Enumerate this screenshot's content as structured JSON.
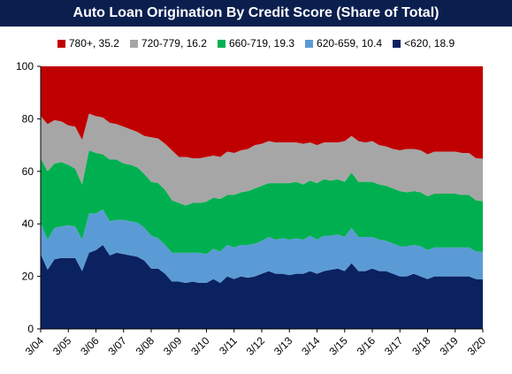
{
  "chart_data": {
    "type": "area",
    "stacked": true,
    "title": "Auto Loan Origination By Credit Score (Share of Total)",
    "ylim": [
      0,
      100
    ],
    "yticks": [
      0,
      20,
      40,
      60,
      80,
      100
    ],
    "xtick_labels": [
      "3/04",
      "3/05",
      "3/06",
      "3/07",
      "3/08",
      "3/09",
      "3/10",
      "3/11",
      "3/12",
      "3/13",
      "3/14",
      "3/15",
      "3/16",
      "3/17",
      "3/18",
      "3/19",
      "3/20"
    ],
    "grid": false,
    "legend_position": "top",
    "x": [
      "1Q04",
      "2Q04",
      "3Q04",
      "4Q04",
      "1Q05",
      "2Q05",
      "3Q05",
      "4Q05",
      "1Q06",
      "2Q06",
      "3Q06",
      "4Q06",
      "1Q07",
      "2Q07",
      "3Q07",
      "4Q07",
      "1Q08",
      "2Q08",
      "3Q08",
      "4Q08",
      "1Q09",
      "2Q09",
      "3Q09",
      "4Q09",
      "1Q10",
      "2Q10",
      "3Q10",
      "4Q10",
      "1Q11",
      "2Q11",
      "3Q11",
      "4Q11",
      "1Q12",
      "2Q12",
      "3Q12",
      "4Q12",
      "1Q13",
      "2Q13",
      "3Q13",
      "4Q13",
      "1Q14",
      "2Q14",
      "3Q14",
      "4Q14",
      "1Q15",
      "2Q15",
      "3Q15",
      "4Q15",
      "1Q16",
      "2Q16",
      "3Q16",
      "4Q16",
      "1Q17",
      "2Q17",
      "3Q17",
      "4Q17",
      "1Q18",
      "2Q18",
      "3Q18",
      "4Q18",
      "1Q19",
      "2Q19",
      "3Q19",
      "4Q19",
      "1Q20"
    ],
    "series": [
      {
        "name": "<620",
        "label": "<620, 18.9",
        "color": "#0b2260",
        "values": [
          28.5,
          22.5,
          26.5,
          27,
          27,
          27,
          22,
          29,
          30,
          32,
          28,
          29,
          28.5,
          28,
          27.5,
          26,
          23,
          23,
          21,
          18,
          18,
          17.5,
          18,
          17.5,
          17.5,
          19,
          17.5,
          20,
          19,
          20,
          19.5,
          20,
          21,
          22,
          21,
          21,
          20.5,
          21,
          21,
          22,
          21,
          22,
          22.5,
          23,
          22,
          25,
          22,
          22,
          23,
          22,
          22,
          21,
          20,
          20,
          21,
          20,
          19,
          20,
          20,
          20,
          20,
          20,
          20,
          19,
          18.9
        ]
      },
      {
        "name": "620-659",
        "label": "620-659, 10.4",
        "color": "#5b9bd5",
        "values": [
          12,
          11.5,
          12,
          12,
          12.5,
          12,
          12,
          15,
          14,
          13.5,
          13,
          12.5,
          13,
          13,
          13,
          12.5,
          12.5,
          11.5,
          11,
          11,
          11,
          11.5,
          11,
          11.5,
          11,
          11.5,
          12,
          12,
          12,
          12,
          12.5,
          12.5,
          12.5,
          13,
          13,
          13.5,
          13.5,
          13.5,
          13,
          13.5,
          13,
          13.5,
          13,
          13,
          13,
          13.5,
          13,
          13,
          12,
          12,
          11.5,
          11.5,
          11.5,
          11.5,
          11,
          11.5,
          11,
          11,
          11,
          11,
          11,
          11,
          11,
          10.5,
          10.4
        ]
      },
      {
        "name": "660-719",
        "label": "660-719, 19.3",
        "color": "#00b050",
        "values": [
          24.5,
          26,
          24.5,
          24.5,
          23,
          22,
          21,
          24,
          23,
          21,
          23.5,
          23,
          21.5,
          21.5,
          21,
          20.5,
          20.5,
          21,
          21,
          20,
          19,
          18,
          19,
          19,
          20,
          19.5,
          20,
          19,
          20,
          20,
          20.5,
          21,
          21,
          20.5,
          21.5,
          21,
          21.5,
          21.5,
          21,
          21,
          21.5,
          21.5,
          21,
          21,
          21,
          21,
          21,
          21,
          21,
          21,
          21,
          21,
          21,
          20.5,
          20.5,
          20.5,
          20.5,
          20.5,
          20.5,
          20.5,
          20.5,
          20,
          20,
          19.5,
          19.3
        ]
      },
      {
        "name": "720-779",
        "label": "720-779, 16.2",
        "color": "#a6a6a6",
        "values": [
          16,
          18,
          16.5,
          15.5,
          15,
          16,
          17,
          14,
          14,
          14,
          14,
          13.5,
          14,
          13.5,
          13.5,
          14.5,
          17,
          17,
          17.5,
          19,
          17.5,
          18.5,
          17,
          17,
          17,
          16,
          16,
          16.5,
          16,
          16,
          16,
          16.5,
          16,
          16,
          15.5,
          15.5,
          15.5,
          15,
          15.5,
          14.5,
          14.5,
          14,
          14.5,
          14,
          15.5,
          14,
          15.5,
          15,
          15.5,
          15,
          15,
          15,
          15.5,
          16.5,
          16,
          16,
          16,
          16,
          16,
          16,
          16,
          16,
          16,
          16,
          16.2
        ]
      },
      {
        "name": "780+",
        "label": "780+, 35.2",
        "color": "#c00000",
        "values": [
          19,
          22,
          20.5,
          21,
          22.5,
          23,
          28,
          18,
          19,
          19.5,
          21.5,
          22,
          23,
          24,
          25,
          26.5,
          27,
          27.5,
          29.5,
          32,
          34.5,
          34.5,
          35,
          35,
          34.5,
          34,
          34.5,
          32.5,
          33,
          32,
          31.5,
          30,
          29.5,
          28.5,
          29,
          29,
          29,
          29,
          29.5,
          29,
          30,
          29,
          29,
          29,
          28.5,
          26.5,
          28.5,
          29,
          28.5,
          30,
          30.5,
          31.5,
          32,
          31.5,
          31.5,
          32,
          33.5,
          32.5,
          32.5,
          32.5,
          32.5,
          33,
          33,
          35,
          35.2
        ]
      }
    ]
  }
}
